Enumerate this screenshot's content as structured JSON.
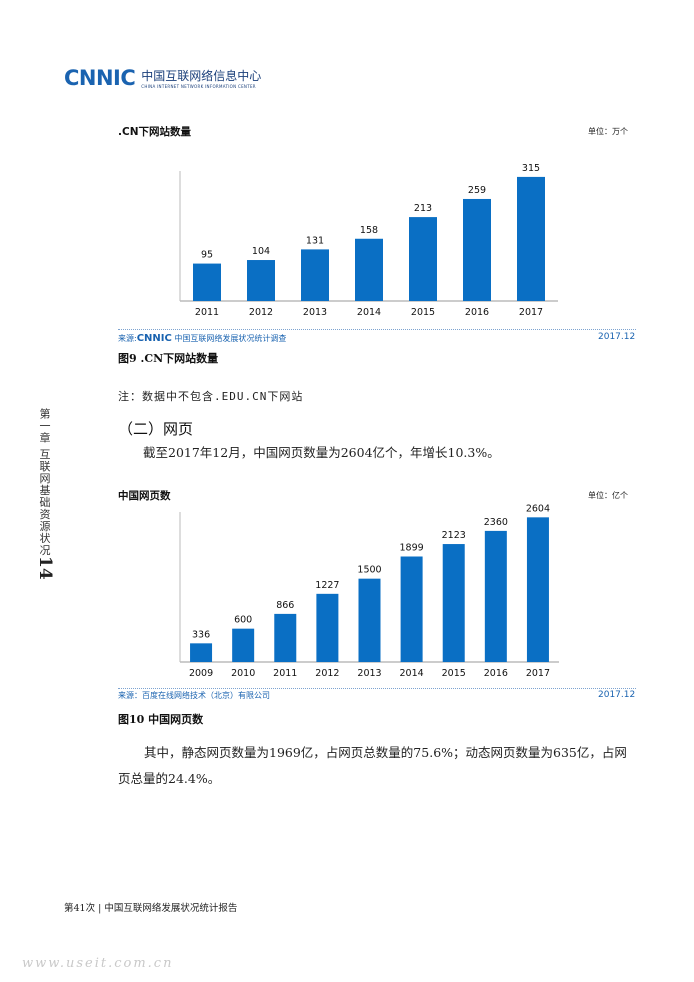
{
  "header": {
    "logo_mark": "CNNIC",
    "logo_cn": "中国互联网络信息中心",
    "logo_en": "CHINA INTERNET NETWORK INFORMATION CENTER"
  },
  "chart1": {
    "title": ".CN下网站数量",
    "unit": "单位：万个",
    "source_prefix": "来源:",
    "source_logo": "CNNIC",
    "source_text": "中国互联网络发展状况统计调查",
    "date": "2017.12",
    "caption": "图9  .CN下网站数量"
  },
  "note": "注：数据中不包含.EDU.CN下网站",
  "section_title": "（二）网页",
  "para1": "截至2017年12月，中国网页数量为2604亿个，年增长10.3%。",
  "chart2": {
    "title": "中国网页数",
    "unit": "单位：亿个",
    "source": "来源：百度在线网络技术（北京）有限公司",
    "date": "2017.12",
    "caption": "图10  中国网页数"
  },
  "para2": "其中，静态网页数量为1969亿，占网页总数量的75.6%；动态网页数量为635亿，占网页总量的24.4%。",
  "side_label": "第一章  互联网基础资源状况",
  "page_number": "14",
  "footer": "第41次 | 中国互联网络发展状况统计报告",
  "watermark": "www.useit.com.cn",
  "colors": {
    "bar": "#0a6fc4",
    "brand": "#1a63b0"
  },
  "chart_data": [
    {
      "type": "bar",
      "title": ".CN下网站数量",
      "categories": [
        "2011",
        "2012",
        "2013",
        "2014",
        "2015",
        "2016",
        "2017"
      ],
      "values": [
        95,
        104,
        131,
        158,
        213,
        259,
        315
      ],
      "ylim": [
        0,
        330
      ],
      "unit": "万个"
    },
    {
      "type": "bar",
      "title": "中国网页数",
      "categories": [
        "2009",
        "2010",
        "2011",
        "2012",
        "2013",
        "2014",
        "2015",
        "2016",
        "2017"
      ],
      "values": [
        336,
        600,
        866,
        1227,
        1500,
        1899,
        2123,
        2360,
        2604
      ],
      "ylim": [
        0,
        2700
      ],
      "unit": "亿个"
    }
  ]
}
